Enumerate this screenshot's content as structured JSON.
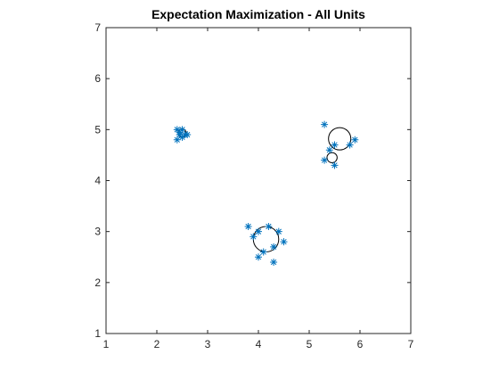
{
  "colors": {
    "background": "#ffffff",
    "axes": "#262626",
    "marker": "#0072bd",
    "circle": "#000000"
  },
  "chart_data": {
    "type": "scatter",
    "title": "Expectation Maximization - All Units",
    "xlabel": "",
    "ylabel": "",
    "xlim": [
      1,
      7
    ],
    "ylim": [
      1,
      7
    ],
    "xticks": [
      "1",
      "2",
      "3",
      "4",
      "5",
      "6",
      "7"
    ],
    "yticks": [
      "1",
      "2",
      "3",
      "4",
      "5",
      "6",
      "7"
    ],
    "grid": false,
    "series": [
      {
        "marker": "asterisk",
        "x": [
          2.4,
          2.45,
          2.5,
          2.55,
          2.4,
          2.5,
          2.45,
          2.6,
          3.8,
          3.9,
          4.0,
          4.2,
          4.4,
          4.5,
          4.3,
          4.0,
          4.1,
          4.3,
          5.3,
          5.5,
          5.8,
          5.9,
          5.3,
          5.5,
          5.4
        ],
        "y": [
          5.0,
          4.95,
          5.0,
          4.9,
          4.8,
          4.85,
          4.9,
          4.9,
          3.1,
          2.9,
          3.0,
          3.1,
          3.0,
          2.8,
          2.7,
          2.5,
          2.6,
          2.4,
          5.1,
          4.7,
          4.7,
          4.8,
          4.4,
          4.3,
          4.6
        ]
      }
    ],
    "components": [
      {
        "center": [
          2.5,
          4.93
        ],
        "radius": 0.08
      },
      {
        "center": [
          4.15,
          2.85
        ],
        "radius": 0.25
      },
      {
        "center": [
          5.6,
          4.82
        ],
        "radius": 0.22
      },
      {
        "center": [
          5.45,
          4.45
        ],
        "radius": 0.1
      }
    ]
  }
}
